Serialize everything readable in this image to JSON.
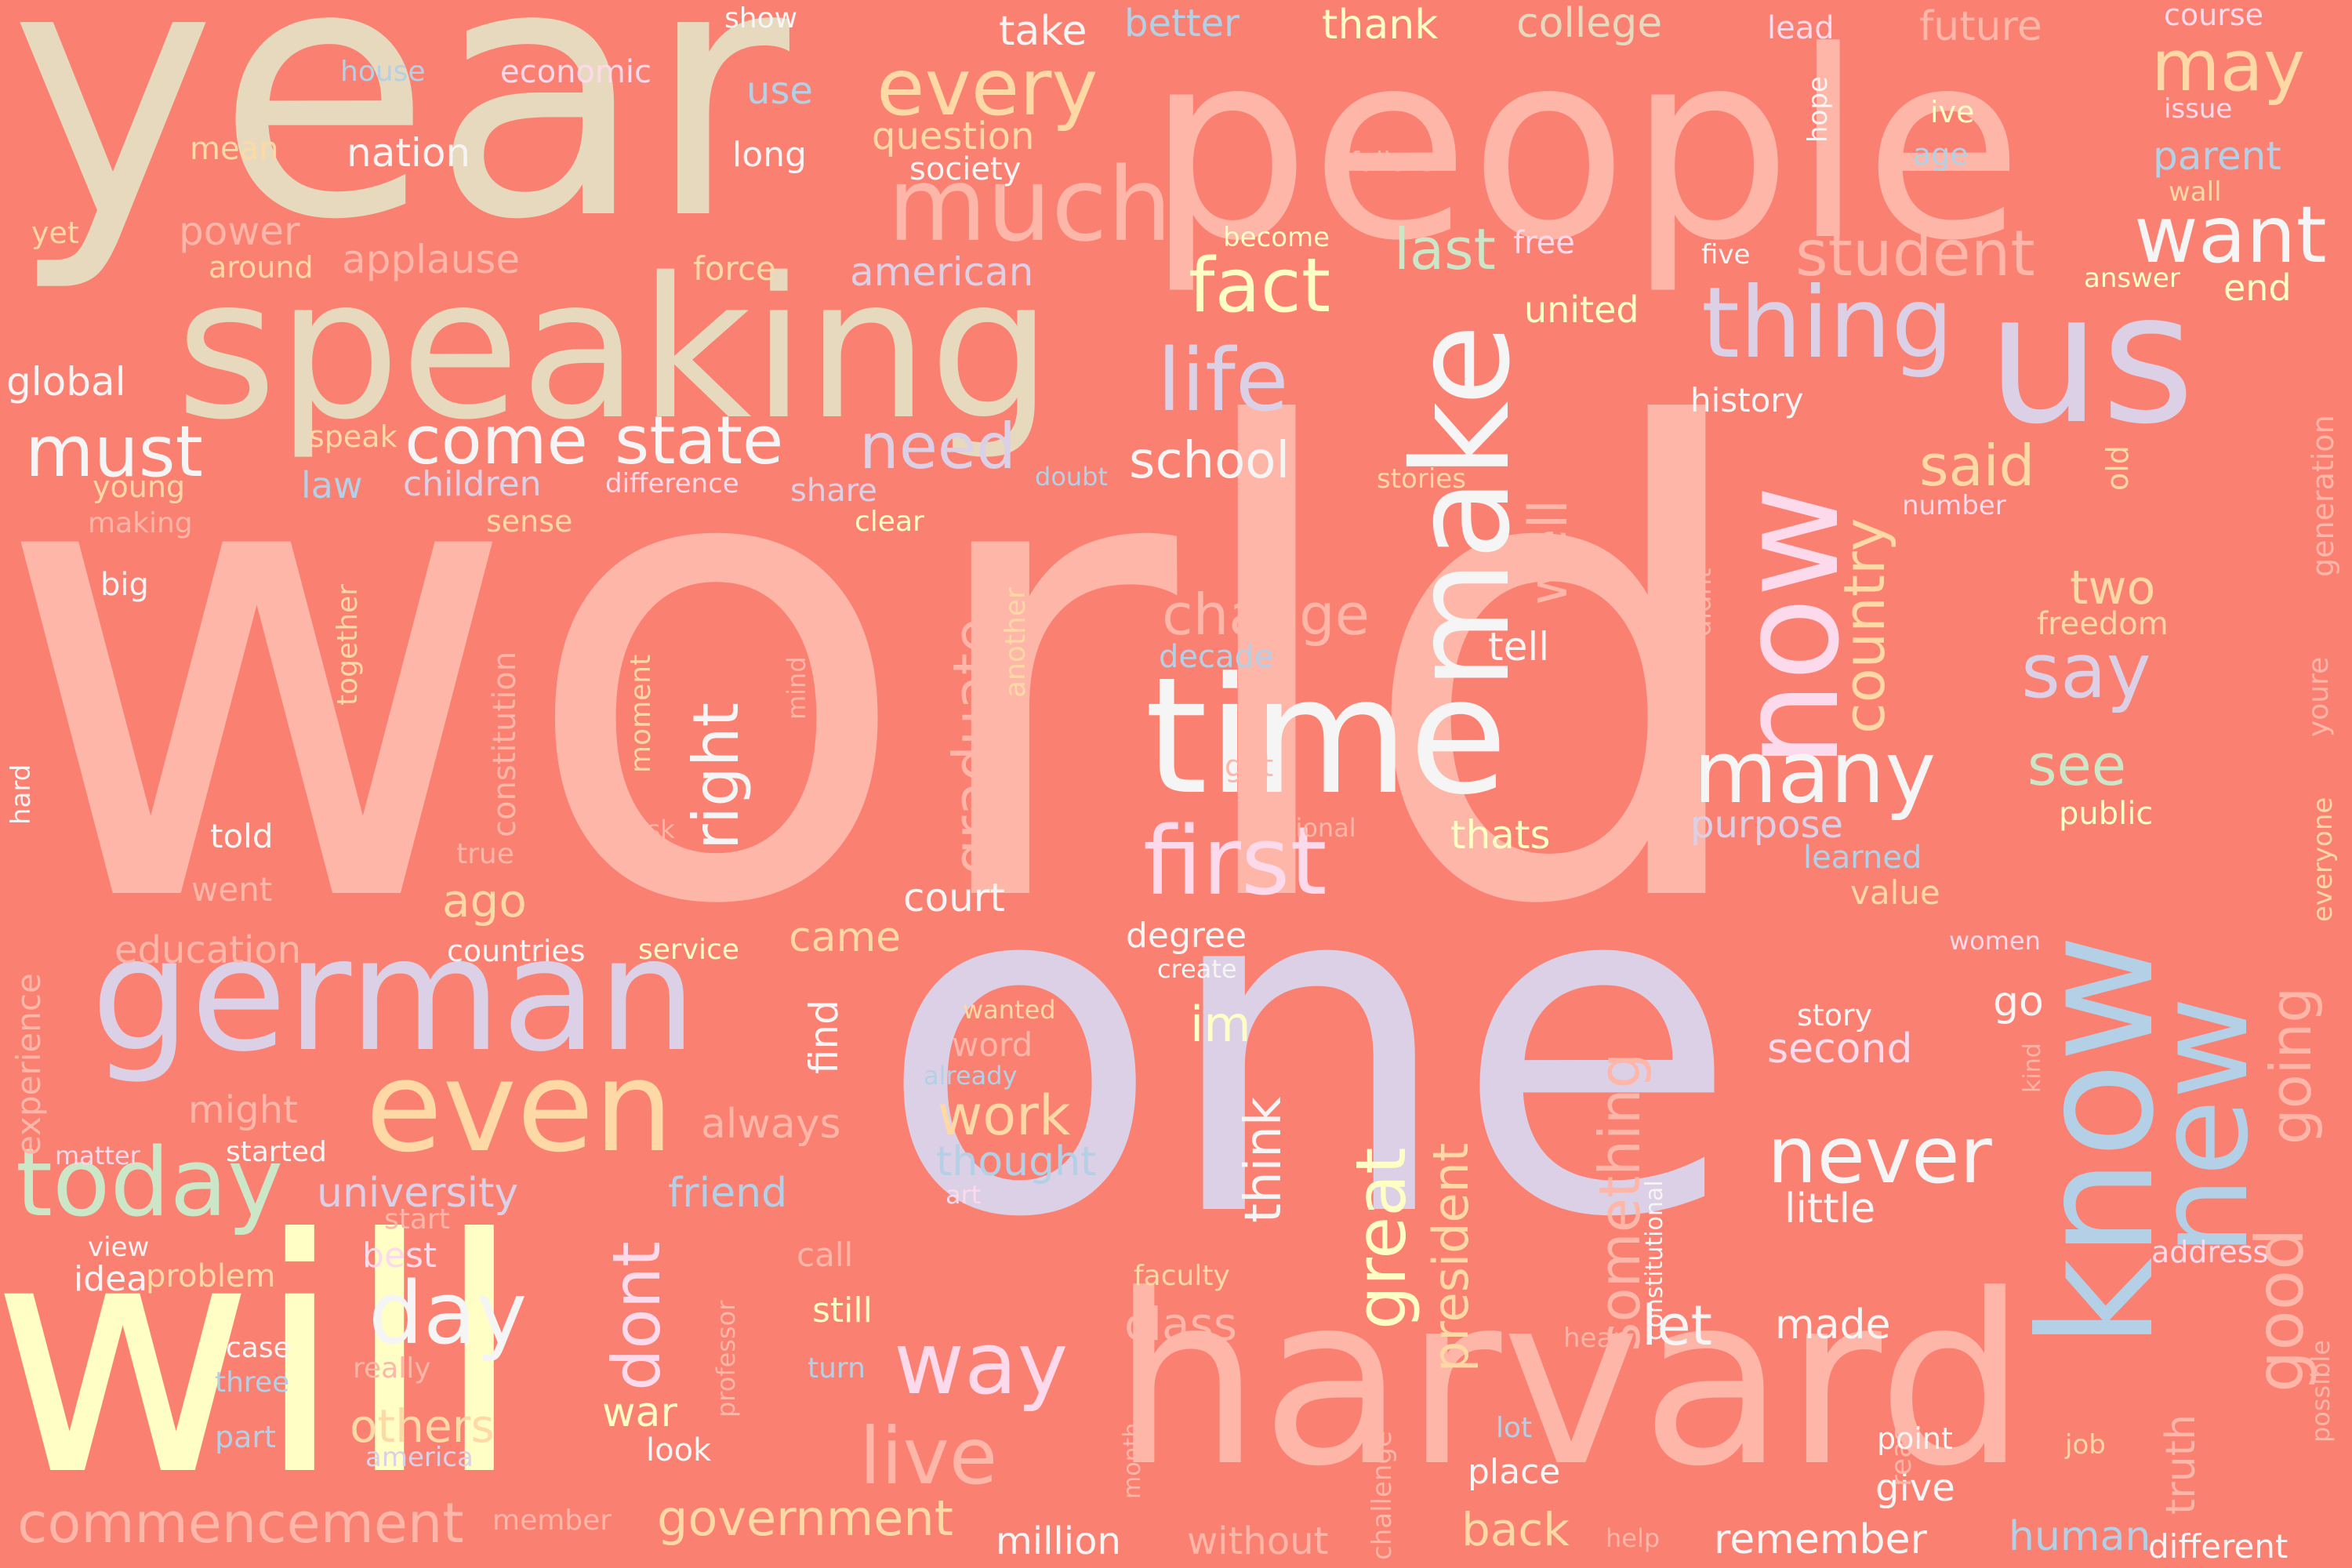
{
  "background": "#fa8072",
  "words": [
    {
      "text": "world",
      "color": "#fdb6a8"
    },
    {
      "text": "one",
      "color": "#dcd0e6"
    },
    {
      "text": "year",
      "color": "#e6d9bd"
    },
    {
      "text": "people",
      "color": "#fdb6a8"
    },
    {
      "text": "will",
      "color": "#fffec4"
    },
    {
      "text": "harvard",
      "color": "#fdb6a8"
    },
    {
      "text": "speaking",
      "color": "#e6d9bd"
    },
    {
      "text": "us",
      "color": "#dcd0e6"
    },
    {
      "text": "german",
      "color": "#dcd0e6"
    },
    {
      "text": "time",
      "color": "#f5f5f5"
    },
    {
      "text": "make",
      "color": "#f5f5f5"
    },
    {
      "text": "now",
      "color": "#fdd9ec"
    },
    {
      "text": "know",
      "color": "#b3d0e6"
    },
    {
      "text": "new",
      "color": "#b3d0e6"
    },
    {
      "text": "even",
      "color": "#fed9a6"
    },
    {
      "text": "much",
      "color": "#fdb6a8"
    },
    {
      "text": "thing",
      "color": "#dcd0e6"
    },
    {
      "text": "today",
      "color": "#cce6c8"
    },
    {
      "text": "first",
      "color": "#fdd9ec"
    },
    {
      "text": "many",
      "color": "#f5f5f5"
    },
    {
      "text": "life",
      "color": "#dcd0e6"
    },
    {
      "text": "fact",
      "color": "#fffec4"
    },
    {
      "text": "want",
      "color": "#f5f5f5"
    },
    {
      "text": "every",
      "color": "#fed9a6"
    },
    {
      "text": "may",
      "color": "#fed9a6"
    },
    {
      "text": "must",
      "color": "#f5f5f5"
    },
    {
      "text": "come",
      "color": "#f5f5f5"
    },
    {
      "text": "state",
      "color": "#f5f5f5"
    },
    {
      "text": "need",
      "color": "#dcd0e6"
    },
    {
      "text": "student",
      "color": "#fdb6a8"
    },
    {
      "text": "day",
      "color": "#f5f5f5"
    },
    {
      "text": "way",
      "color": "#fdd9ec"
    },
    {
      "text": "live",
      "color": "#fdb6a8"
    },
    {
      "text": "never",
      "color": "#f5f5f5"
    },
    {
      "text": "right",
      "color": "#f5f5f5"
    },
    {
      "text": "graduate",
      "color": "#fdb6a8"
    },
    {
      "text": "country",
      "color": "#fed9a6"
    },
    {
      "text": "well",
      "color": "#fdb6a8"
    },
    {
      "text": "say",
      "color": "#dcd0e6"
    },
    {
      "text": "said",
      "color": "#fed9a6"
    },
    {
      "text": "good",
      "color": "#fdb6a8"
    },
    {
      "text": "going",
      "color": "#fdb6a8"
    },
    {
      "text": "great",
      "color": "#fffec4"
    },
    {
      "text": "president",
      "color": "#fed9a6"
    },
    {
      "text": "something",
      "color": "#fdb6a8"
    },
    {
      "text": "change",
      "color": "#fdb6a8"
    },
    {
      "text": "last",
      "color": "#cce6c8"
    },
    {
      "text": "school",
      "color": "#f5f5f5"
    },
    {
      "text": "see",
      "color": "#cce6c8"
    },
    {
      "text": "two",
      "color": "#fed9a6"
    },
    {
      "text": "work",
      "color": "#fed9a6"
    },
    {
      "text": "think",
      "color": "#f5f5f5"
    },
    {
      "text": "dont",
      "color": "#fdd9ec"
    },
    {
      "text": "let",
      "color": "#f5f5f5"
    },
    {
      "text": "commencement",
      "color": "#fdb6a8"
    },
    {
      "text": "government",
      "color": "#fed9a6"
    },
    {
      "text": "others",
      "color": "#fed9a6"
    },
    {
      "text": "im",
      "color": "#fffec4"
    },
    {
      "text": "class",
      "color": "#fdb6a8"
    },
    {
      "text": "back",
      "color": "#fed9a6"
    },
    {
      "text": "made",
      "color": "#f5f5f5"
    },
    {
      "text": "remember",
      "color": "#f5f5f5"
    },
    {
      "text": "human",
      "color": "#b3d0e6"
    },
    {
      "text": "truth",
      "color": "#fdb6a8"
    },
    {
      "text": "university",
      "color": "#dcd0e6"
    },
    {
      "text": "friend",
      "color": "#b3d0e6"
    },
    {
      "text": "always",
      "color": "#fdb6a8"
    },
    {
      "text": "thought",
      "color": "#b3d0e6"
    },
    {
      "text": "ago",
      "color": "#fed9a6"
    },
    {
      "text": "court",
      "color": "#f5f5f5"
    },
    {
      "text": "came",
      "color": "#fed9a6"
    },
    {
      "text": "find",
      "color": "#f5f5f5"
    },
    {
      "text": "purpose",
      "color": "#dcd0e6"
    },
    {
      "text": "thats",
      "color": "#fffec4"
    },
    {
      "text": "second",
      "color": "#fdd9ec"
    },
    {
      "text": "go",
      "color": "#f5f5f5"
    },
    {
      "text": "little",
      "color": "#f5f5f5"
    },
    {
      "text": "war",
      "color": "#fffec4"
    },
    {
      "text": "million",
      "color": "#f5f5f5"
    },
    {
      "text": "without",
      "color": "#fdb6a8"
    },
    {
      "text": "give",
      "color": "#f5f5f5"
    },
    {
      "text": "different",
      "color": "#f5f5f5"
    },
    {
      "text": "place",
      "color": "#f5f5f5"
    },
    {
      "text": "still",
      "color": "#fffec4"
    },
    {
      "text": "idea",
      "color": "#f5f5f5"
    },
    {
      "text": "might",
      "color": "#fdb6a8"
    },
    {
      "text": "experience",
      "color": "#fdb6a8"
    },
    {
      "text": "education",
      "color": "#fdb6a8"
    },
    {
      "text": "question",
      "color": "#fed9a6"
    },
    {
      "text": "take",
      "color": "#f5f5f5"
    },
    {
      "text": "better",
      "color": "#b3d0e6"
    },
    {
      "text": "thank",
      "color": "#fffec4"
    },
    {
      "text": "college",
      "color": "#e6d9bd"
    },
    {
      "text": "future",
      "color": "#fdb6a8"
    },
    {
      "text": "nation",
      "color": "#f5f5f5"
    },
    {
      "text": "power",
      "color": "#fdb6a8"
    },
    {
      "text": "applause",
      "color": "#fdb6a8"
    },
    {
      "text": "american",
      "color": "#dcd0e6"
    },
    {
      "text": "parent",
      "color": "#b3d0e6"
    },
    {
      "text": "history",
      "color": "#f5f5f5"
    },
    {
      "text": "united",
      "color": "#fffec4"
    },
    {
      "text": "children",
      "color": "#dcd0e6"
    },
    {
      "text": "law",
      "color": "#b3d0e6"
    },
    {
      "text": "constitution",
      "color": "#fdb6a8"
    },
    {
      "text": "decade",
      "color": "#b3d0e6"
    },
    {
      "text": "tell",
      "color": "#f5f5f5"
    },
    {
      "text": "degree",
      "color": "#f5f5f5"
    },
    {
      "text": "freedom",
      "color": "#fed9a6"
    },
    {
      "text": "public",
      "color": "#fffec4"
    },
    {
      "text": "learned",
      "color": "#b3d0e6"
    },
    {
      "text": "value",
      "color": "#fed9a6"
    },
    {
      "text": "problem",
      "color": "#fed9a6"
    },
    {
      "text": "best",
      "color": "#fdd9ec"
    },
    {
      "text": "story",
      "color": "#f5f5f5"
    },
    {
      "text": "generation",
      "color": "#fdb6a8"
    },
    {
      "text": "youre",
      "color": "#fdb6a8"
    },
    {
      "text": "everyone",
      "color": "#fed9a6"
    },
    {
      "text": "constitutional",
      "color": "#f5f5f5"
    },
    {
      "text": "economic",
      "color": "#fdd9ec"
    },
    {
      "text": "house",
      "color": "#b3d0e6"
    },
    {
      "text": "show",
      "color": "#f5f5f5"
    },
    {
      "text": "use",
      "color": "#b3d0e6"
    },
    {
      "text": "long",
      "color": "#f5f5f5"
    },
    {
      "text": "society",
      "color": "#f5f5f5"
    },
    {
      "text": "mean",
      "color": "#fed9a6"
    },
    {
      "text": "yet",
      "color": "#fed9a6"
    },
    {
      "text": "around",
      "color": "#fed9a6"
    },
    {
      "text": "force",
      "color": "#fed9a6"
    },
    {
      "text": "global",
      "color": "#f5f5f5"
    },
    {
      "text": "speak",
      "color": "#fed9a6"
    },
    {
      "text": "young",
      "color": "#fed9a6"
    },
    {
      "text": "making",
      "color": "#fdb6a8"
    },
    {
      "text": "difference",
      "color": "#fdd9ec"
    },
    {
      "text": "share",
      "color": "#dcd0e6"
    },
    {
      "text": "sense",
      "color": "#fed9a6"
    },
    {
      "text": "clear",
      "color": "#fffec4"
    },
    {
      "text": "big",
      "color": "#f5f5f5"
    },
    {
      "text": "together",
      "color": "#fed9a6"
    },
    {
      "text": "moment",
      "color": "#fed9a6"
    },
    {
      "text": "mind",
      "color": "#fdb6a8"
    },
    {
      "text": "another",
      "color": "#fed9a6"
    },
    {
      "text": "doubt",
      "color": "#b3d0e6"
    },
    {
      "text": "stories",
      "color": "#fed9a6"
    },
    {
      "text": "hard",
      "color": "#f5f5f5"
    },
    {
      "text": "told",
      "color": "#f5f5f5"
    },
    {
      "text": "true",
      "color": "#fdb6a8"
    },
    {
      "text": "went",
      "color": "#fdb6a8"
    },
    {
      "text": "ask",
      "color": "#fdb6a8"
    },
    {
      "text": "got",
      "color": "#fdb6a8"
    },
    {
      "text": "national",
      "color": "#fdb6a8"
    },
    {
      "text": "countries",
      "color": "#f5f5f5"
    },
    {
      "text": "service",
      "color": "#fffec4"
    },
    {
      "text": "matter",
      "color": "#fdd9ec"
    },
    {
      "text": "started",
      "color": "#f5f5f5"
    },
    {
      "text": "start",
      "color": "#fdb6a8"
    },
    {
      "text": "view",
      "color": "#f5f5f5"
    },
    {
      "text": "case",
      "color": "#f5f5f5"
    },
    {
      "text": "three",
      "color": "#b3d0e6"
    },
    {
      "text": "part",
      "color": "#b3d0e6"
    },
    {
      "text": "really",
      "color": "#fdb6a8"
    },
    {
      "text": "america",
      "color": "#dcd0e6"
    },
    {
      "text": "member",
      "color": "#fdb6a8"
    },
    {
      "text": "look",
      "color": "#f5f5f5"
    },
    {
      "text": "professor",
      "color": "#fdb6a8"
    },
    {
      "text": "call",
      "color": "#fdb6a8"
    },
    {
      "text": "turn",
      "color": "#b3d0e6"
    },
    {
      "text": "art",
      "color": "#fdd9ec"
    },
    {
      "text": "word",
      "color": "#fdb6a8"
    },
    {
      "text": "already",
      "color": "#b3d0e6"
    },
    {
      "text": "wanted",
      "color": "#fed9a6"
    },
    {
      "text": "create",
      "color": "#f5f5f5"
    },
    {
      "text": "faculty",
      "color": "#fed9a6"
    },
    {
      "text": "challenge",
      "color": "#fdb6a8"
    },
    {
      "text": "month",
      "color": "#fdb6a8"
    },
    {
      "text": "help",
      "color": "#fdb6a8"
    },
    {
      "text": "lot",
      "color": "#b3d0e6"
    },
    {
      "text": "hear",
      "color": "#fdb6a8"
    },
    {
      "text": "reason",
      "color": "#fdb6a8"
    },
    {
      "text": "point",
      "color": "#f5f5f5"
    },
    {
      "text": "job",
      "color": "#fed9a6"
    },
    {
      "text": "possible",
      "color": "#fdb6a8"
    },
    {
      "text": "address",
      "color": "#fdd9ec"
    },
    {
      "text": "women",
      "color": "#fdd9ec"
    },
    {
      "text": "kind",
      "color": "#fdb6a8"
    },
    {
      "text": "didnt",
      "color": "#fdb6a8"
    },
    {
      "text": "number",
      "color": "#fdd9ec"
    },
    {
      "text": "old",
      "color": "#fed9a6"
    },
    {
      "text": "course",
      "color": "#fdd9ec"
    },
    {
      "text": "issue",
      "color": "#fdd9ec"
    },
    {
      "text": "ive",
      "color": "#fffec4"
    },
    {
      "text": "age",
      "color": "#b3d0e6"
    },
    {
      "text": "wall",
      "color": "#fed9a6"
    },
    {
      "text": "answer",
      "color": "#fffec4"
    },
    {
      "text": "end",
      "color": "#fffec4"
    },
    {
      "text": "hope",
      "color": "#f5f5f5"
    },
    {
      "text": "lead",
      "color": "#fdd9ec"
    },
    {
      "text": "failure",
      "color": "#fdb6a8"
    },
    {
      "text": "free",
      "color": "#fdd9ec"
    },
    {
      "text": "five",
      "color": "#f5f5f5"
    },
    {
      "text": "become",
      "color": "#fffec4"
    }
  ]
}
